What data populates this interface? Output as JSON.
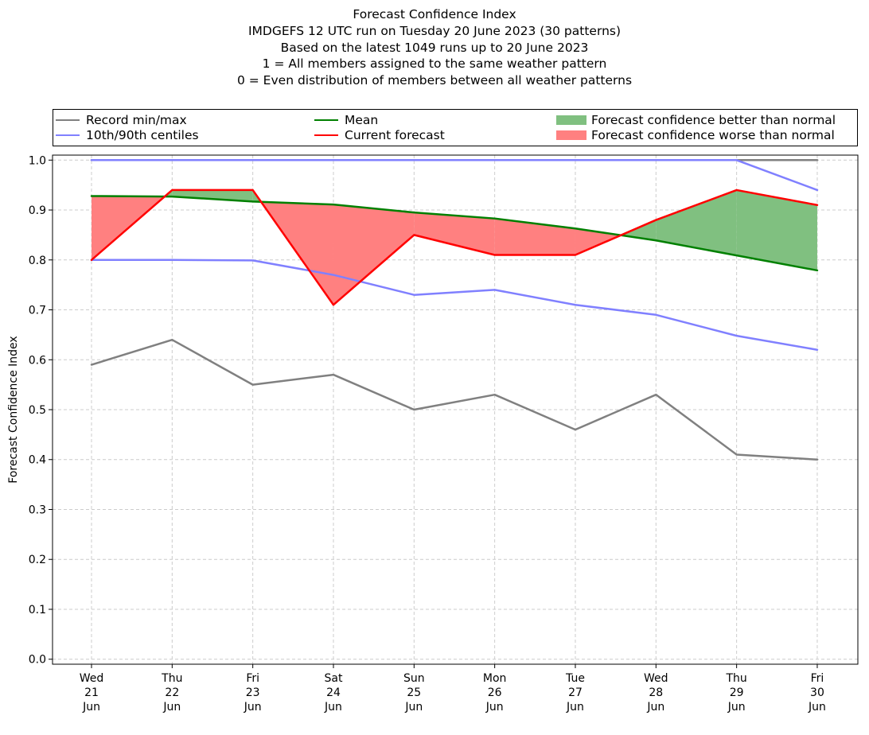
{
  "title_lines": [
    "Forecast Confidence Index",
    "IMDGEFS 12 UTC run on Tuesday 20 June 2023 (30 patterns)",
    "Based on the latest 1049 runs up to 20 June 2023",
    "1 = All members assigned to the same weather pattern",
    "0 = Even distribution of members between all weather patterns"
  ],
  "legend": {
    "record": "Record min/max",
    "centiles": "10th/90th centiles",
    "mean": "Mean",
    "current": "Current forecast",
    "better": "Forecast confidence better than normal",
    "worse": "Forecast confidence worse than normal"
  },
  "colors": {
    "record": "#808080",
    "centiles": "#8080ff",
    "mean": "#008000",
    "current": "#ff0000",
    "better": "#80c080",
    "worse": "#ff8080",
    "grid": "#cccccc"
  },
  "chart_data": {
    "type": "line",
    "ylabel": "Forecast Confidence Index",
    "xlabel": "",
    "ylim": [
      -0.01,
      1.01
    ],
    "yticks": [
      "0.0",
      "0.1",
      "0.2",
      "0.3",
      "0.4",
      "0.5",
      "0.6",
      "0.7",
      "0.8",
      "0.9",
      "1.0"
    ],
    "grid": true,
    "legend_position": "top",
    "categories": [
      [
        "Wed",
        "21",
        "Jun"
      ],
      [
        "Thu",
        "22",
        "Jun"
      ],
      [
        "Fri",
        "23",
        "Jun"
      ],
      [
        "Sat",
        "24",
        "Jun"
      ],
      [
        "Sun",
        "25",
        "Jun"
      ],
      [
        "Mon",
        "26",
        "Jun"
      ],
      [
        "Tue",
        "27",
        "Jun"
      ],
      [
        "Wed",
        "28",
        "Jun"
      ],
      [
        "Thu",
        "29",
        "Jun"
      ],
      [
        "Fri",
        "30",
        "Jun"
      ]
    ],
    "series": [
      {
        "name": "Record min/max",
        "key": "record_max",
        "values": [
          1.0,
          1.0,
          1.0,
          1.0,
          1.0,
          1.0,
          1.0,
          1.0,
          1.0,
          1.0
        ]
      },
      {
        "name": "Record min/max",
        "key": "record_min",
        "values": [
          0.59,
          0.64,
          0.55,
          0.57,
          0.5,
          0.53,
          0.46,
          0.53,
          0.41,
          0.4
        ]
      },
      {
        "name": "10th/90th centiles",
        "key": "p90",
        "values": [
          1.0,
          1.0,
          1.0,
          1.0,
          1.0,
          1.0,
          1.0,
          1.0,
          1.0,
          0.94
        ]
      },
      {
        "name": "10th/90th centiles",
        "key": "p10",
        "values": [
          0.8,
          0.8,
          0.799,
          0.77,
          0.73,
          0.74,
          0.71,
          0.69,
          0.648,
          0.62
        ]
      },
      {
        "name": "Mean",
        "key": "mean",
        "values": [
          0.928,
          0.927,
          0.917,
          0.911,
          0.895,
          0.883,
          0.863,
          0.839,
          0.809,
          0.779
        ]
      },
      {
        "name": "Current forecast",
        "key": "current",
        "values": [
          0.8,
          0.94,
          0.94,
          0.71,
          0.85,
          0.81,
          0.81,
          0.88,
          0.94,
          0.91
        ]
      }
    ]
  }
}
